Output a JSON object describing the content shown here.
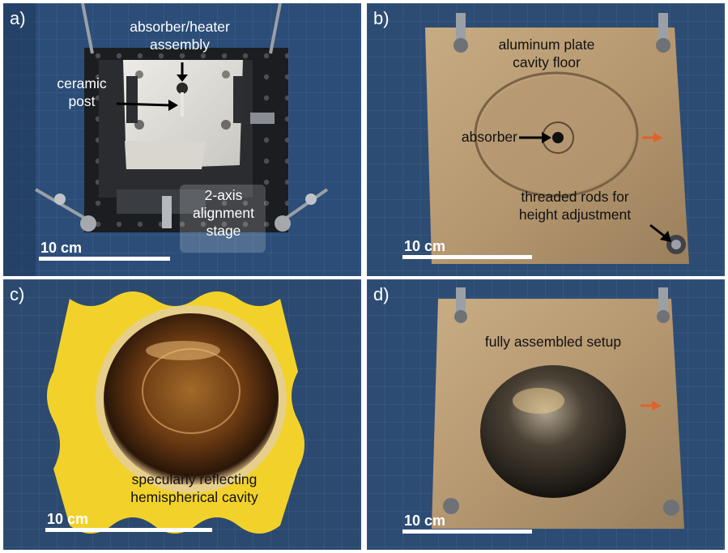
{
  "panels": {
    "a": {
      "label": "a)",
      "absorber_heater": "absorber/heater\nassembly",
      "ceramic_post": "ceramic\npost",
      "alignment_stage": "2-axis\nalignment\nstage",
      "scale": "10 cm"
    },
    "b": {
      "label": "b)",
      "aluminum_plate": "aluminum plate\ncavity floor",
      "absorber": "absorber",
      "threaded_rods": "threaded rods for\nheight adjustment",
      "scale": "10 cm"
    },
    "c": {
      "label": "c)",
      "cavity": "specularly reflecting\nhemispherical cavity",
      "scale": "10 cm"
    },
    "d": {
      "label": "d)",
      "assembled": "fully assembled setup",
      "scale": "10 cm"
    }
  },
  "colors": {
    "mat_blue": "#2a4a72",
    "aluminum": "#b89a72",
    "foam_yellow": "#f2d22a",
    "arrow_orange": "#e0632a"
  }
}
